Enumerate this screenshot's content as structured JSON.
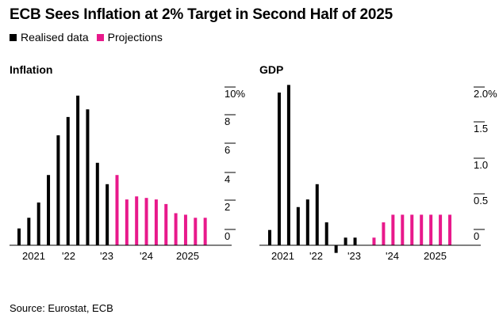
{
  "title": "ECB Sees Inflation at 2% Target in Second Half of 2025",
  "legend": [
    {
      "label": "Realised data",
      "color": "#000000"
    },
    {
      "label": "Projections",
      "color": "#e8198b"
    }
  ],
  "source": "Source: Eurostat, ECB",
  "chart_data": [
    {
      "type": "bar",
      "title": "Inflation",
      "ylim": [
        0,
        10
      ],
      "y_ticks": [
        "0",
        "2",
        "4",
        "6",
        "8",
        "10%"
      ],
      "x_tick_labels": [
        "2021",
        "'22",
        "'23",
        "'24",
        "2025"
      ],
      "series": [
        {
          "name": "Realised data",
          "color": "#000000",
          "x": [
            "2021-Q1",
            "2021-Q2",
            "2021-Q3",
            "2021-Q4",
            "2022-Q1",
            "2022-Q2",
            "2022-Q3",
            "2022-Q4",
            "2023-Q1",
            "2023-Q2"
          ],
          "values": [
            1.1,
            1.8,
            2.8,
            4.6,
            7.2,
            8.4,
            9.8,
            8.9,
            5.4,
            4.0
          ]
        },
        {
          "name": "Projections",
          "color": "#e8198b",
          "x": [
            "2023-Q3",
            "2023-Q4",
            "2024-Q1",
            "2024-Q2",
            "2024-Q3",
            "2024-Q4",
            "2025-Q1",
            "2025-Q2",
            "2025-Q3",
            "2025-Q4"
          ],
          "values": [
            4.6,
            3.0,
            3.2,
            3.1,
            3.0,
            2.7,
            2.1,
            2.0,
            1.8,
            1.8
          ]
        }
      ]
    },
    {
      "type": "bar",
      "title": "GDP",
      "ylim": [
        -0.2,
        2.0
      ],
      "y_ticks": [
        "0",
        "0.5",
        "1.0",
        "1.5",
        "2.0%"
      ],
      "x_tick_labels": [
        "2021",
        "'22",
        "'23",
        "'24",
        "2025"
      ],
      "series": [
        {
          "name": "Realised data",
          "color": "#000000",
          "x": [
            "2021-Q1",
            "2021-Q2",
            "2021-Q3",
            "2021-Q4",
            "2022-Q1",
            "2022-Q2",
            "2022-Q3",
            "2022-Q4",
            "2023-Q1",
            "2023-Q2"
          ],
          "values": [
            0.2,
            2.0,
            2.1,
            0.5,
            0.6,
            0.8,
            0.3,
            -0.1,
            0.1,
            0.1
          ]
        },
        {
          "name": "Projections",
          "color": "#e8198b",
          "x": [
            "2023-Q3",
            "2023-Q4",
            "2024-Q1",
            "2024-Q2",
            "2024-Q3",
            "2024-Q4",
            "2025-Q1",
            "2025-Q2",
            "2025-Q3",
            "2025-Q4"
          ],
          "values": [
            0.0,
            0.1,
            0.3,
            0.4,
            0.4,
            0.4,
            0.4,
            0.4,
            0.4,
            0.4
          ]
        }
      ]
    }
  ]
}
